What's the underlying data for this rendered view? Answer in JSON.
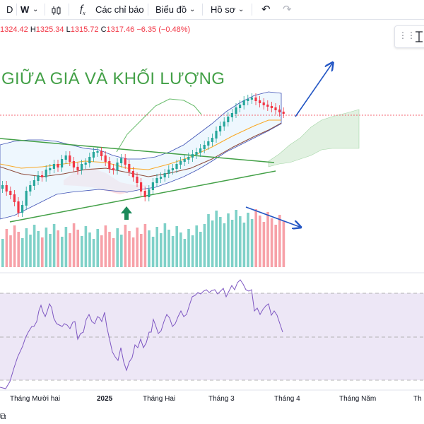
{
  "toolbar": {
    "symbol_partial": "D",
    "interval": "W",
    "indicators_label": "Các chỉ báo",
    "chart_type_label": "Biểu đồ",
    "profile_label": "Hồ sơ"
  },
  "ohlc": {
    "open_value": "1324.42",
    "high_label": "H",
    "high_value": "1325.34",
    "low_label": "L",
    "low_value": "1315.72",
    "close_label": "C",
    "close_value": "1317.46",
    "change": "−6.35 (−0.48%)"
  },
  "annotation": {
    "headline": "GIỮA GIÁ VÀ KHỐI LƯỢNG"
  },
  "time_axis": {
    "labels": [
      "Tháng Mười hai",
      "2025",
      "Tháng Hai",
      "Tháng 3",
      "Tháng 4",
      "Tháng Năm",
      "Th"
    ]
  },
  "colors": {
    "up": "#26a69a",
    "down": "#f23645",
    "volume_up": "#7fd1c8",
    "volume_down": "#f7a1a8",
    "annotation_green": "#43a047",
    "arrow_blue": "#2255c4",
    "rsi_line": "#7e57c2",
    "rsi_band": "#ede7f6"
  }
}
